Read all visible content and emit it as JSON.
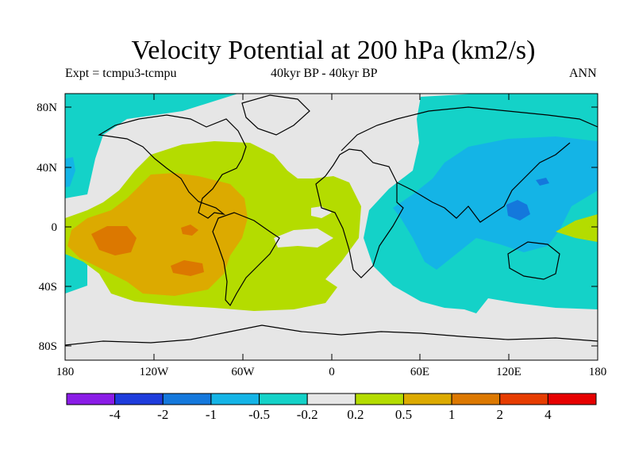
{
  "title": "Velocity Potential at 200 hPa (km2/s)",
  "experiment": "Expt = tcmpu3-tcmpu",
  "period": "40kyr BP - 40kyr BP",
  "season": "ANN",
  "axes": {
    "lat_ticks": [
      "80N",
      "40N",
      "0",
      "40S",
      "80S"
    ],
    "lon_ticks": [
      "180",
      "120W",
      "60W",
      "0",
      "60E",
      "120E",
      "180"
    ]
  },
  "colorbar": {
    "labels": [
      "-4",
      "-2",
      "-1",
      "-0.5",
      "-0.2",
      "0.2",
      "0.5",
      "1",
      "2",
      "4"
    ],
    "colors": [
      "#8a1ce6",
      "#1e3cdc",
      "#1478dc",
      "#14b4e6",
      "#14d2c8",
      "#e6e6e6",
      "#b4dc00",
      "#dcaa00",
      "#dc7800",
      "#e63c00",
      "#e60000"
    ]
  },
  "field_colors": {
    "neutral": "#e6e6e6",
    "pos_0_2": "#b4dc00",
    "pos_0_5": "#dcaa00",
    "pos_1": "#dc7800",
    "neg_0_2": "#14d2c8",
    "neg_0_5": "#14b4e6",
    "neg_1": "#1478dc"
  }
}
